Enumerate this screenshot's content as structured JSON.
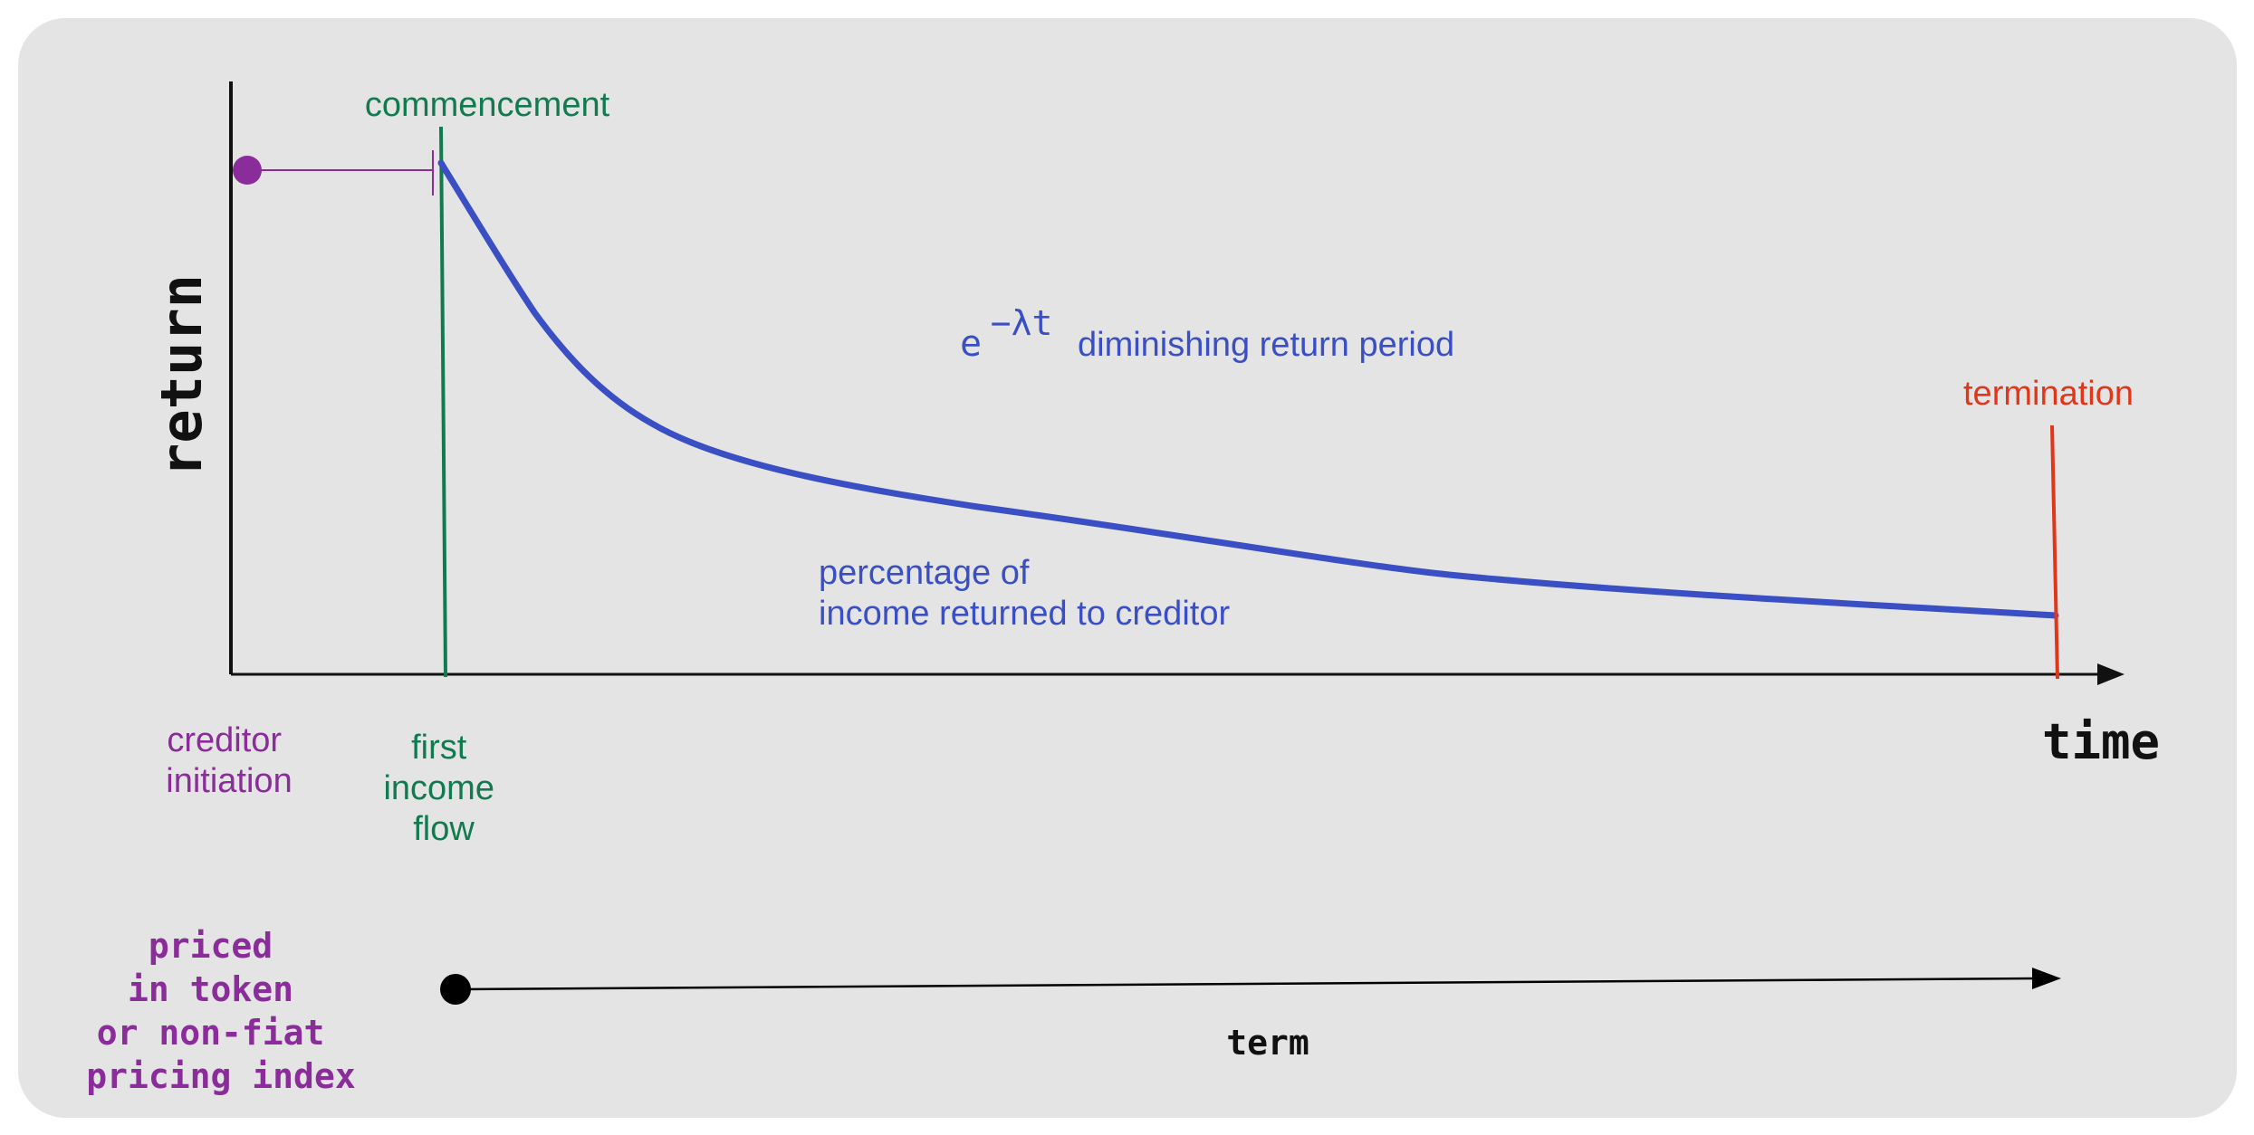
{
  "colors": {
    "background": "#e4e4e5",
    "axis": "#111111",
    "curve": "#3a4fc4",
    "creditor": "#8a2c99",
    "commencement": "#127a4f",
    "termination": "#e0361a",
    "term": "#000000"
  },
  "labels": {
    "y_axis": "return",
    "x_axis": "time",
    "commencement": "commencement",
    "termination": "termination",
    "formula_base": "e",
    "formula_exponent": "−λt",
    "decay_caption": "diminishing return period",
    "curve_caption": [
      "percentage of",
      "income returned to creditor"
    ],
    "creditor_initiation": [
      "creditor",
      "initiation"
    ],
    "first_income_flow": [
      "first",
      "income",
      "flow"
    ],
    "pricing": [
      "priced",
      "in token",
      "or non-fiat",
      "pricing index"
    ],
    "term": "term"
  }
}
